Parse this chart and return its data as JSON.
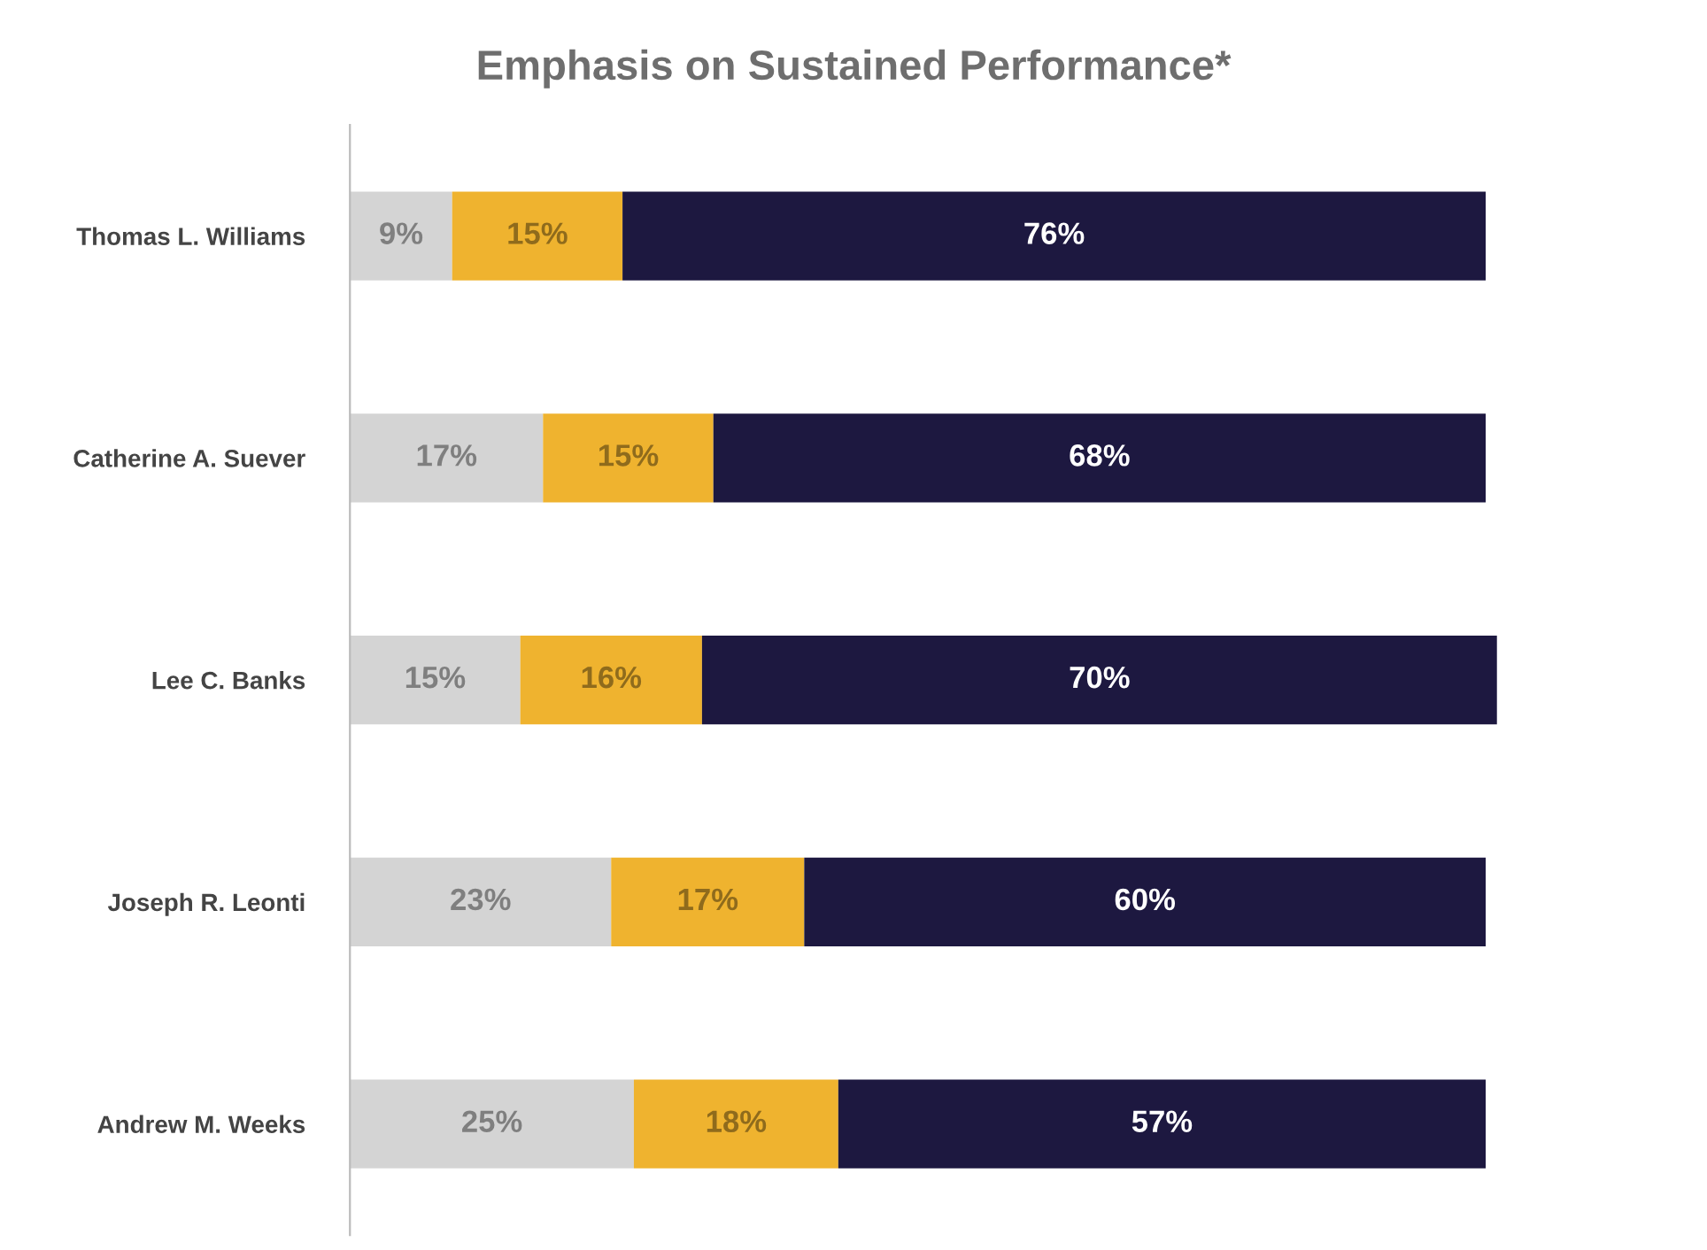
{
  "chart_data": {
    "type": "bar",
    "orientation": "horizontal",
    "stacked": true,
    "title": "Emphasis on Sustained Performance*",
    "categories": [
      "Thomas L. Williams",
      "Catherine A. Suever",
      "Lee C. Banks",
      "Joseph R. Leonti",
      "Andrew M. Weeks"
    ],
    "series": [
      {
        "color": "#d4d4d4",
        "values": [
          9,
          17,
          15,
          23,
          25
        ],
        "value_labels": [
          "9%",
          "17%",
          "15%",
          "23%",
          "25%"
        ]
      },
      {
        "color": "#efb32f",
        "values": [
          15,
          15,
          16,
          17,
          18
        ],
        "value_labels": [
          "15%",
          "15%",
          "16%",
          "17%",
          "18%"
        ]
      },
      {
        "color": "#1d1840",
        "values": [
          76,
          68,
          70,
          60,
          57
        ],
        "value_labels": [
          "76%",
          "68%",
          "70%",
          "60%",
          "57%"
        ]
      }
    ],
    "tick_labels": "y",
    "grid": false,
    "legend": false
  }
}
